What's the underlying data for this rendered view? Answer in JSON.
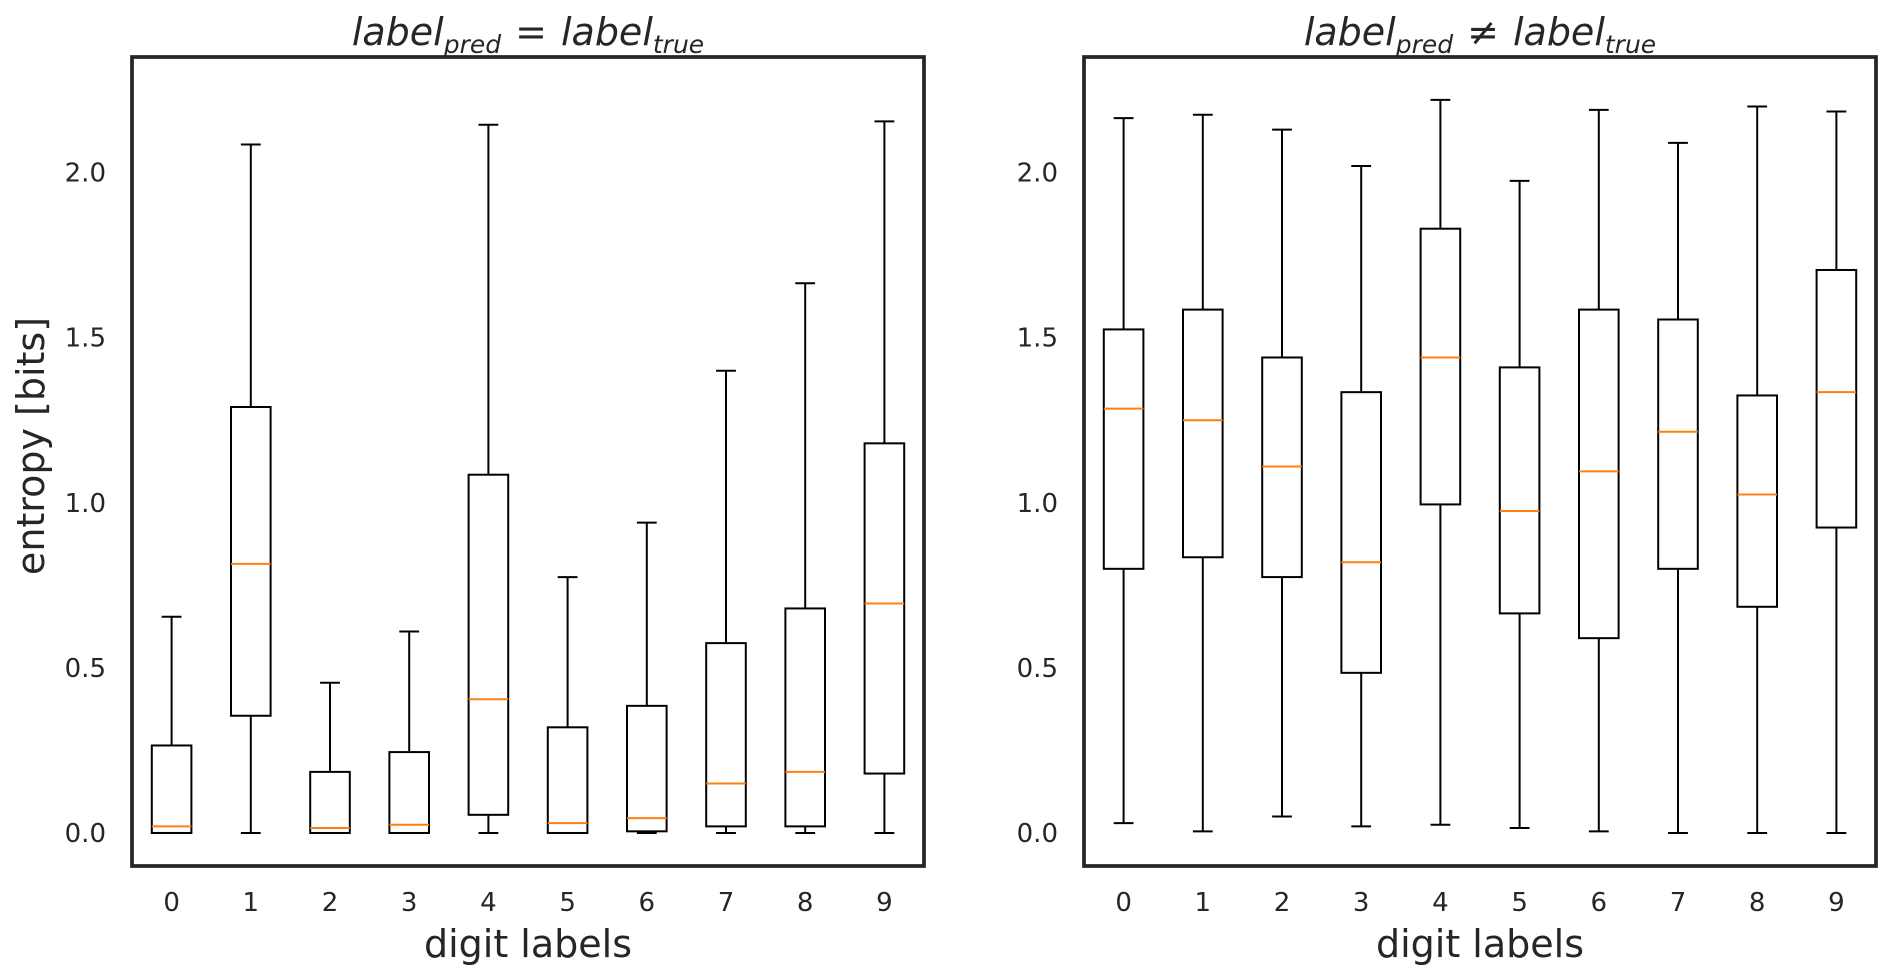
{
  "chart_data": [
    {
      "type": "box",
      "title_parts": {
        "pre": "label",
        "pre_sub": "pred",
        "op": "=",
        "post": "label",
        "post_sub": "true"
      },
      "xlabel": "digit labels",
      "ylabel": "entropy [bits]",
      "categories": [
        "0",
        "1",
        "2",
        "3",
        "4",
        "5",
        "6",
        "7",
        "8",
        "9"
      ],
      "ylim": [
        -0.1,
        2.35
      ],
      "yticks": [
        "0.0",
        "0.5",
        "1.0",
        "1.5",
        "2.0"
      ],
      "grid": false,
      "boxes": [
        {
          "whislo": 0.0,
          "q1": 0.0,
          "med": 0.02,
          "q3": 0.265,
          "whishi": 0.655
        },
        {
          "whislo": 0.0,
          "q1": 0.355,
          "med": 0.815,
          "q3": 1.29,
          "whishi": 2.085
        },
        {
          "whislo": 0.0,
          "q1": 0.0,
          "med": 0.015,
          "q3": 0.185,
          "whishi": 0.455
        },
        {
          "whislo": 0.0,
          "q1": 0.0,
          "med": 0.025,
          "q3": 0.245,
          "whishi": 0.61
        },
        {
          "whislo": 0.0,
          "q1": 0.055,
          "med": 0.405,
          "q3": 1.085,
          "whishi": 2.145
        },
        {
          "whislo": 0.0,
          "q1": 0.0,
          "med": 0.03,
          "q3": 0.32,
          "whishi": 0.775
        },
        {
          "whislo": 0.0,
          "q1": 0.005,
          "med": 0.045,
          "q3": 0.385,
          "whishi": 0.94
        },
        {
          "whislo": 0.0,
          "q1": 0.02,
          "med": 0.15,
          "q3": 0.575,
          "whishi": 1.4
        },
        {
          "whislo": 0.0,
          "q1": 0.02,
          "med": 0.185,
          "q3": 0.68,
          "whishi": 1.665
        },
        {
          "whislo": 0.0,
          "q1": 0.18,
          "med": 0.695,
          "q3": 1.18,
          "whishi": 2.155
        }
      ]
    },
    {
      "type": "box",
      "title_parts": {
        "pre": "label",
        "pre_sub": "pred",
        "op": "≠",
        "post": "label",
        "post_sub": "true"
      },
      "xlabel": "digit labels",
      "ylabel": "",
      "categories": [
        "0",
        "1",
        "2",
        "3",
        "4",
        "5",
        "6",
        "7",
        "8",
        "9"
      ],
      "ylim": [
        -0.1,
        2.35
      ],
      "yticks": [
        "0.0",
        "0.5",
        "1.0",
        "1.5",
        "2.0"
      ],
      "grid": false,
      "boxes": [
        {
          "whislo": 0.03,
          "q1": 0.8,
          "med": 1.285,
          "q3": 1.525,
          "whishi": 2.165
        },
        {
          "whislo": 0.005,
          "q1": 0.835,
          "med": 1.25,
          "q3": 1.585,
          "whishi": 2.175
        },
        {
          "whislo": 0.05,
          "q1": 0.775,
          "med": 1.11,
          "q3": 1.44,
          "whishi": 2.13
        },
        {
          "whislo": 0.02,
          "q1": 0.485,
          "med": 0.82,
          "q3": 1.335,
          "whishi": 2.02
        },
        {
          "whislo": 0.025,
          "q1": 0.995,
          "med": 1.44,
          "q3": 1.83,
          "whishi": 2.22
        },
        {
          "whislo": 0.015,
          "q1": 0.665,
          "med": 0.975,
          "q3": 1.41,
          "whishi": 1.975
        },
        {
          "whislo": 0.005,
          "q1": 0.59,
          "med": 1.095,
          "q3": 1.585,
          "whishi": 2.19
        },
        {
          "whislo": 0.0,
          "q1": 0.8,
          "med": 1.215,
          "q3": 1.555,
          "whishi": 2.09
        },
        {
          "whislo": 0.0,
          "q1": 0.685,
          "med": 1.025,
          "q3": 1.325,
          "whishi": 2.2
        },
        {
          "whislo": 0.0,
          "q1": 0.925,
          "med": 1.335,
          "q3": 1.705,
          "whishi": 2.185
        }
      ]
    }
  ]
}
